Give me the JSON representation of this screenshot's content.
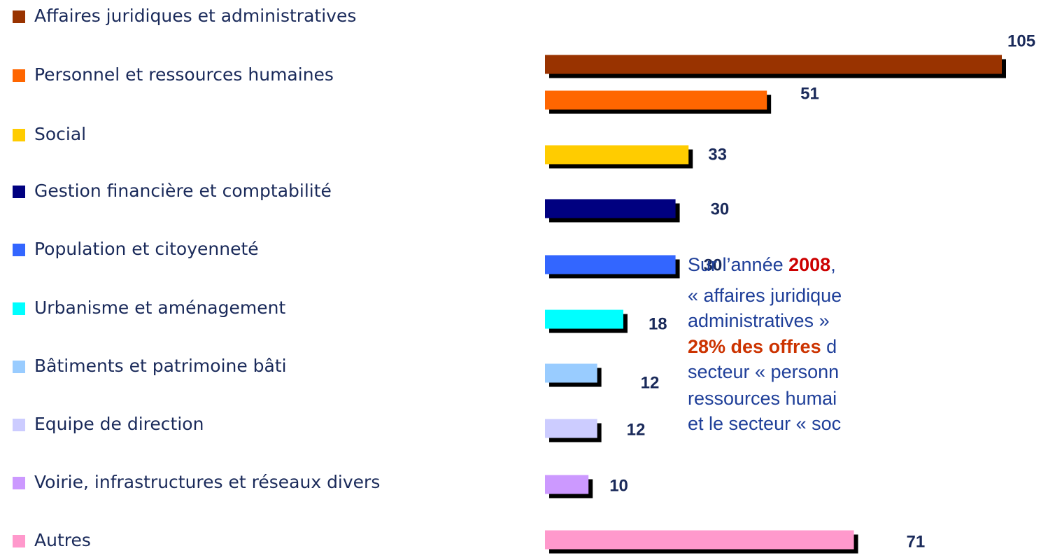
{
  "chart_data": {
    "type": "barh",
    "categories": [
      "Affaires juridiques et administratives",
      "Personnel et ressources humaines",
      "Social",
      "Gestion financière et comptabilité",
      "Population et citoyenneté",
      "Urbanisme et aménagement",
      "Bâtiments et patrimoine bâti",
      "Equipe de direction",
      "Voirie, infrastructures et réseaux divers",
      "Autres"
    ],
    "values": [
      105,
      51,
      33,
      30,
      30,
      18,
      12,
      12,
      10,
      71
    ],
    "colors": [
      "#993300",
      "#ff6600",
      "#ffcc00",
      "#000080",
      "#3366ff",
      "#00ffff",
      "#99ccff",
      "#ccccff",
      "#cc99ff",
      "#ff99cc"
    ],
    "xlim": [
      0,
      105
    ],
    "annotation": [
      [
        {
          "text": "Sur l’année "
        },
        {
          "text": "2008",
          "color": "#cc0000"
        },
        {
          "text": ","
        }
      ],
      [
        {
          "text": "« affaires juridique"
        }
      ],
      [
        {
          "text": "administratives »"
        }
      ],
      [
        {
          "text": "28% des offres",
          "color": "#cc3300"
        },
        {
          "text": " d"
        }
      ],
      [
        {
          "text": "secteur « personn"
        }
      ],
      [
        {
          "text": "ressources humai"
        }
      ],
      [
        {
          "text": "et le secteur « soc"
        }
      ]
    ]
  }
}
